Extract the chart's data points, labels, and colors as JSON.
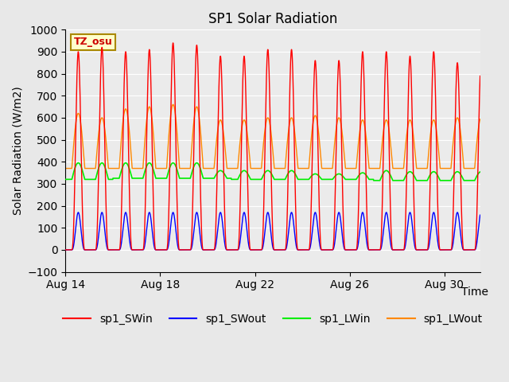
{
  "title": "SP1 Solar Radiation",
  "ylabel": "Solar Radiation (W/m2)",
  "xlabel": "Time",
  "annotation": "TZ_osu",
  "ylim": [
    -100,
    1000
  ],
  "total_days": 17.5,
  "n_days": 17,
  "x_ticks_labels": [
    "Aug 14",
    "Aug 18",
    "Aug 22",
    "Aug 26",
    "Aug 30"
  ],
  "x_ticks_days": [
    0,
    4,
    8,
    12,
    16
  ],
  "legend": [
    "sp1_SWin",
    "sp1_SWout",
    "sp1_LWin",
    "sp1_LWout"
  ],
  "colors": {
    "sp1_SWin": "#ff0000",
    "sp1_SWout": "#0000ff",
    "sp1_LWin": "#00ee00",
    "sp1_LWout": "#ff8800"
  },
  "background_color": "#e8e8e8",
  "plot_bg_color": "#ebebeb",
  "title_fontsize": 12,
  "axis_fontsize": 10,
  "legend_fontsize": 10,
  "sw_peaks": [
    0.9,
    0.92,
    0.9,
    0.91,
    0.94,
    0.93,
    0.88,
    0.88,
    0.91,
    0.91,
    0.86,
    0.86,
    0.9,
    0.9,
    0.88,
    0.9,
    0.85
  ],
  "lw_out_peaks": [
    0.62,
    0.6,
    0.64,
    0.65,
    0.66,
    0.65,
    0.59,
    0.59,
    0.6,
    0.6,
    0.61,
    0.6,
    0.59,
    0.59,
    0.59,
    0.59,
    0.6
  ],
  "lw_out_base": [
    0.37,
    0.37,
    0.37,
    0.37,
    0.37,
    0.37,
    0.37,
    0.37,
    0.37,
    0.37,
    0.37,
    0.37,
    0.37,
    0.37,
    0.37,
    0.37,
    0.37
  ],
  "lw_in_base": [
    0.32,
    0.32,
    0.325,
    0.325,
    0.325,
    0.325,
    0.325,
    0.32,
    0.32,
    0.32,
    0.32,
    0.32,
    0.32,
    0.315,
    0.315,
    0.315,
    0.315
  ],
  "lw_in_peaks": [
    0.395,
    0.395,
    0.395,
    0.395,
    0.395,
    0.395,
    0.36,
    0.36,
    0.36,
    0.36,
    0.345,
    0.345,
    0.35,
    0.36,
    0.355,
    0.355,
    0.355
  ],
  "swout_factor": 0.17
}
